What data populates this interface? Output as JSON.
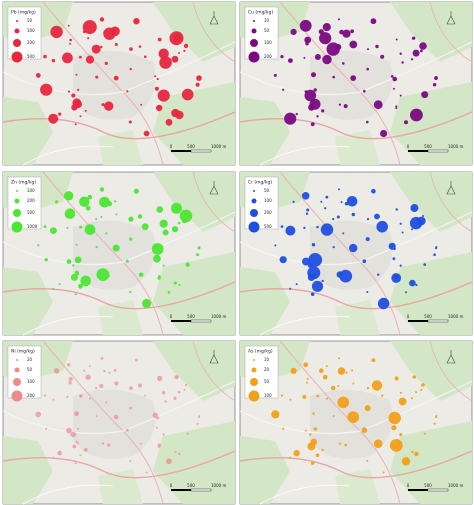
{
  "panels": [
    {
      "title": "Pb (mg/kg)",
      "color": "#e8273f",
      "legend": [
        "50",
        "100",
        "200",
        "500"
      ]
    },
    {
      "title": "Cu (mg/kg)",
      "color": "#7a0a82",
      "legend": [
        "10",
        "50",
        "100",
        "200"
      ]
    },
    {
      "title": "Zn (mg/kg)",
      "color": "#4be634",
      "legend": [
        "100",
        "200",
        "500",
        "1000"
      ]
    },
    {
      "title": "Cr (mg/kg)",
      "color": "#1f4fe0",
      "legend": [
        "50",
        "100",
        "200",
        "500"
      ]
    },
    {
      "title": "Ni (mg/kg)",
      "color": "#f08a8a",
      "legend": [
        "20",
        "50",
        "100",
        "200"
      ]
    },
    {
      "title": "As (mg/kg)",
      "color": "#f2a01a",
      "legend": [
        "10",
        "20",
        "50",
        "100"
      ]
    }
  ],
  "scale_bar": [
    "0",
    "500",
    "1000 m"
  ]
}
